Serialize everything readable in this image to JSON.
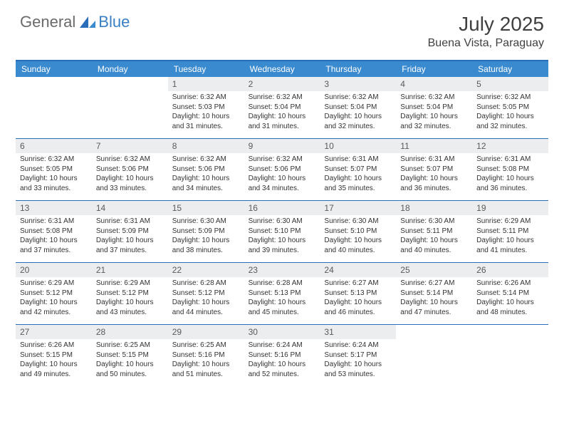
{
  "brand": {
    "part1": "General",
    "part2": "Blue"
  },
  "title": "July 2025",
  "location": "Buena Vista, Paraguay",
  "colors": {
    "header_bg": "#3a8ad0",
    "header_text": "#ffffff",
    "rule": "#2a6db8",
    "daynum_bg": "#ecedee",
    "body_text": "#333333",
    "logo_gray": "#6a6a6a",
    "logo_blue": "#3a7fc4"
  },
  "day_names": [
    "Sunday",
    "Monday",
    "Tuesday",
    "Wednesday",
    "Thursday",
    "Friday",
    "Saturday"
  ],
  "weeks": [
    [
      null,
      null,
      {
        "n": "1",
        "sr": "Sunrise: 6:32 AM",
        "ss": "Sunset: 5:03 PM",
        "dl": "Daylight: 10 hours and 31 minutes."
      },
      {
        "n": "2",
        "sr": "Sunrise: 6:32 AM",
        "ss": "Sunset: 5:04 PM",
        "dl": "Daylight: 10 hours and 31 minutes."
      },
      {
        "n": "3",
        "sr": "Sunrise: 6:32 AM",
        "ss": "Sunset: 5:04 PM",
        "dl": "Daylight: 10 hours and 32 minutes."
      },
      {
        "n": "4",
        "sr": "Sunrise: 6:32 AM",
        "ss": "Sunset: 5:04 PM",
        "dl": "Daylight: 10 hours and 32 minutes."
      },
      {
        "n": "5",
        "sr": "Sunrise: 6:32 AM",
        "ss": "Sunset: 5:05 PM",
        "dl": "Daylight: 10 hours and 32 minutes."
      }
    ],
    [
      {
        "n": "6",
        "sr": "Sunrise: 6:32 AM",
        "ss": "Sunset: 5:05 PM",
        "dl": "Daylight: 10 hours and 33 minutes."
      },
      {
        "n": "7",
        "sr": "Sunrise: 6:32 AM",
        "ss": "Sunset: 5:06 PM",
        "dl": "Daylight: 10 hours and 33 minutes."
      },
      {
        "n": "8",
        "sr": "Sunrise: 6:32 AM",
        "ss": "Sunset: 5:06 PM",
        "dl": "Daylight: 10 hours and 34 minutes."
      },
      {
        "n": "9",
        "sr": "Sunrise: 6:32 AM",
        "ss": "Sunset: 5:06 PM",
        "dl": "Daylight: 10 hours and 34 minutes."
      },
      {
        "n": "10",
        "sr": "Sunrise: 6:31 AM",
        "ss": "Sunset: 5:07 PM",
        "dl": "Daylight: 10 hours and 35 minutes."
      },
      {
        "n": "11",
        "sr": "Sunrise: 6:31 AM",
        "ss": "Sunset: 5:07 PM",
        "dl": "Daylight: 10 hours and 36 minutes."
      },
      {
        "n": "12",
        "sr": "Sunrise: 6:31 AM",
        "ss": "Sunset: 5:08 PM",
        "dl": "Daylight: 10 hours and 36 minutes."
      }
    ],
    [
      {
        "n": "13",
        "sr": "Sunrise: 6:31 AM",
        "ss": "Sunset: 5:08 PM",
        "dl": "Daylight: 10 hours and 37 minutes."
      },
      {
        "n": "14",
        "sr": "Sunrise: 6:31 AM",
        "ss": "Sunset: 5:09 PM",
        "dl": "Daylight: 10 hours and 37 minutes."
      },
      {
        "n": "15",
        "sr": "Sunrise: 6:30 AM",
        "ss": "Sunset: 5:09 PM",
        "dl": "Daylight: 10 hours and 38 minutes."
      },
      {
        "n": "16",
        "sr": "Sunrise: 6:30 AM",
        "ss": "Sunset: 5:10 PM",
        "dl": "Daylight: 10 hours and 39 minutes."
      },
      {
        "n": "17",
        "sr": "Sunrise: 6:30 AM",
        "ss": "Sunset: 5:10 PM",
        "dl": "Daylight: 10 hours and 40 minutes."
      },
      {
        "n": "18",
        "sr": "Sunrise: 6:30 AM",
        "ss": "Sunset: 5:11 PM",
        "dl": "Daylight: 10 hours and 40 minutes."
      },
      {
        "n": "19",
        "sr": "Sunrise: 6:29 AM",
        "ss": "Sunset: 5:11 PM",
        "dl": "Daylight: 10 hours and 41 minutes."
      }
    ],
    [
      {
        "n": "20",
        "sr": "Sunrise: 6:29 AM",
        "ss": "Sunset: 5:12 PM",
        "dl": "Daylight: 10 hours and 42 minutes."
      },
      {
        "n": "21",
        "sr": "Sunrise: 6:29 AM",
        "ss": "Sunset: 5:12 PM",
        "dl": "Daylight: 10 hours and 43 minutes."
      },
      {
        "n": "22",
        "sr": "Sunrise: 6:28 AM",
        "ss": "Sunset: 5:12 PM",
        "dl": "Daylight: 10 hours and 44 minutes."
      },
      {
        "n": "23",
        "sr": "Sunrise: 6:28 AM",
        "ss": "Sunset: 5:13 PM",
        "dl": "Daylight: 10 hours and 45 minutes."
      },
      {
        "n": "24",
        "sr": "Sunrise: 6:27 AM",
        "ss": "Sunset: 5:13 PM",
        "dl": "Daylight: 10 hours and 46 minutes."
      },
      {
        "n": "25",
        "sr": "Sunrise: 6:27 AM",
        "ss": "Sunset: 5:14 PM",
        "dl": "Daylight: 10 hours and 47 minutes."
      },
      {
        "n": "26",
        "sr": "Sunrise: 6:26 AM",
        "ss": "Sunset: 5:14 PM",
        "dl": "Daylight: 10 hours and 48 minutes."
      }
    ],
    [
      {
        "n": "27",
        "sr": "Sunrise: 6:26 AM",
        "ss": "Sunset: 5:15 PM",
        "dl": "Daylight: 10 hours and 49 minutes."
      },
      {
        "n": "28",
        "sr": "Sunrise: 6:25 AM",
        "ss": "Sunset: 5:15 PM",
        "dl": "Daylight: 10 hours and 50 minutes."
      },
      {
        "n": "29",
        "sr": "Sunrise: 6:25 AM",
        "ss": "Sunset: 5:16 PM",
        "dl": "Daylight: 10 hours and 51 minutes."
      },
      {
        "n": "30",
        "sr": "Sunrise: 6:24 AM",
        "ss": "Sunset: 5:16 PM",
        "dl": "Daylight: 10 hours and 52 minutes."
      },
      {
        "n": "31",
        "sr": "Sunrise: 6:24 AM",
        "ss": "Sunset: 5:17 PM",
        "dl": "Daylight: 10 hours and 53 minutes."
      },
      null,
      null
    ]
  ]
}
